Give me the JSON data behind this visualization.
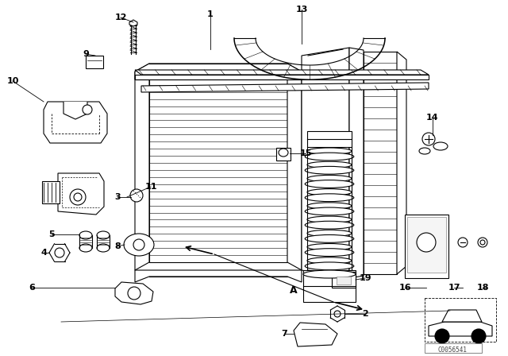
{
  "bg_color": "#ffffff",
  "fig_width": 6.4,
  "fig_height": 4.48,
  "dpi": 100,
  "watermark": "C0056541",
  "line_color": "#000000",
  "label_fontsize": 8
}
